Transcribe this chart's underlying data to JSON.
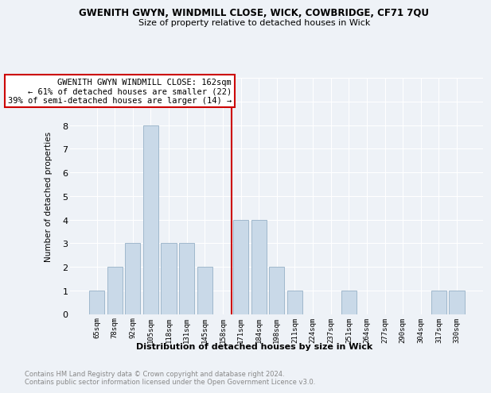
{
  "title1": "GWENITH GWYN, WINDMILL CLOSE, WICK, COWBRIDGE, CF71 7QU",
  "title2": "Size of property relative to detached houses in Wick",
  "xlabel": "Distribution of detached houses by size in Wick",
  "ylabel": "Number of detached properties",
  "categories": [
    "65sqm",
    "78sqm",
    "92sqm",
    "105sqm",
    "118sqm",
    "131sqm",
    "145sqm",
    "158sqm",
    "171sqm",
    "184sqm",
    "198sqm",
    "211sqm",
    "224sqm",
    "237sqm",
    "251sqm",
    "264sqm",
    "277sqm",
    "290sqm",
    "304sqm",
    "317sqm",
    "330sqm"
  ],
  "values": [
    1,
    2,
    3,
    8,
    3,
    3,
    2,
    0,
    4,
    4,
    2,
    1,
    0,
    0,
    1,
    0,
    0,
    0,
    0,
    1,
    1
  ],
  "bar_color": "#c9d9e8",
  "bar_edge_color": "#a0b8cc",
  "vline_color": "#cc0000",
  "annotation_line1": "GWENITH GWYN WINDMILL CLOSE: 162sqm",
  "annotation_line2": "← 61% of detached houses are smaller (22)",
  "annotation_line3": "39% of semi-detached houses are larger (14) →",
  "annotation_box_color": "white",
  "annotation_box_edge": "#cc0000",
  "ylim": [
    0,
    10
  ],
  "yticks": [
    0,
    1,
    2,
    3,
    4,
    5,
    6,
    7,
    8,
    9,
    10
  ],
  "footer": "Contains HM Land Registry data © Crown copyright and database right 2024.\nContains public sector information licensed under the Open Government Licence v3.0.",
  "footer_color": "#888888",
  "background_color": "#eef2f7",
  "grid_color": "#ffffff"
}
